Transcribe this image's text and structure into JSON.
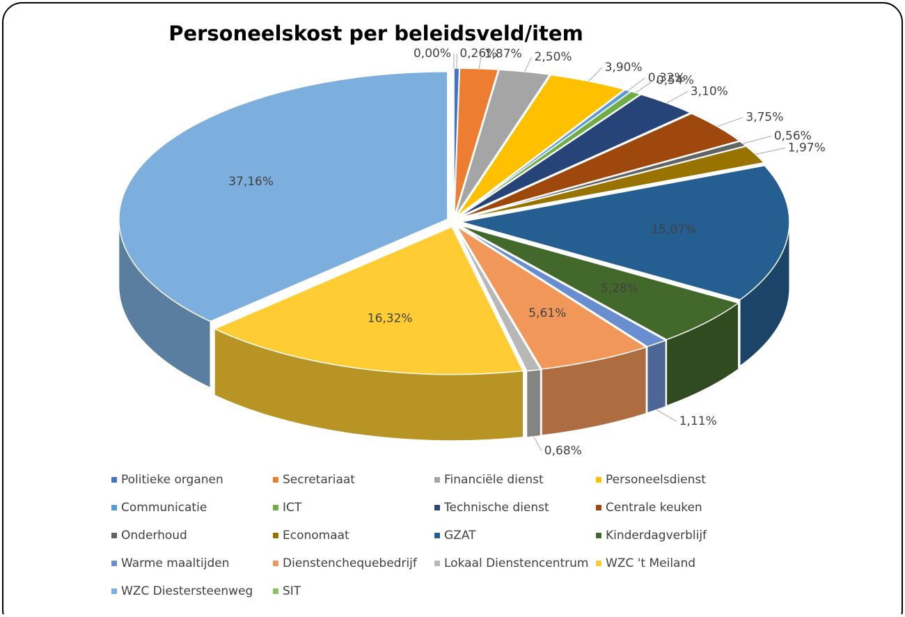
{
  "chart_data": {
    "type": "pie3d",
    "title": "Personeelskost per beleidsveld/item",
    "categories": [
      "Politieke organen",
      "Secretariaat",
      "Financiële dienst",
      "Personeelsdienst",
      "Communicatie",
      "ICT",
      "Technische dienst",
      "Centrale keuken",
      "Onderhoud",
      "Economaat",
      "GZAT",
      "Kinderdagverblijf",
      "Warme maaltijden",
      "Dienstenchequebedrijf",
      "Lokaal Dienstencentrum",
      "WZC 't Meiland",
      "WZC Diestersteenweg",
      "SIT"
    ],
    "values": [
      0.26,
      1.87,
      2.5,
      3.9,
      0.32,
      0.54,
      3.1,
      3.75,
      0.56,
      1.97,
      15.07,
      5.28,
      1.11,
      5.61,
      0.68,
      16.32,
      37.16,
      0.0
    ],
    "value_labels": [
      "0,26%",
      "1,87%",
      "2,50%",
      "3,90%",
      "0,32%",
      "0,54%",
      "3,10%",
      "3,75%",
      "0,56%",
      "1,97%",
      "15,07%",
      "5,28%",
      "1,11%",
      "5,61%",
      "0,68%",
      "16,32%",
      "37,16%",
      "0,00%"
    ],
    "colors": [
      "#4472c4",
      "#ed7d31",
      "#a5a5a5",
      "#ffc000",
      "#5b9bd5",
      "#70ad47",
      "#264478",
      "#9e480e",
      "#636363",
      "#997300",
      "#255e91",
      "#43682b",
      "#698ed0",
      "#f1975a",
      "#b7b7b7",
      "#ffcd33",
      "#7cafdd",
      "#8cc168"
    ],
    "legend": "bottom"
  }
}
